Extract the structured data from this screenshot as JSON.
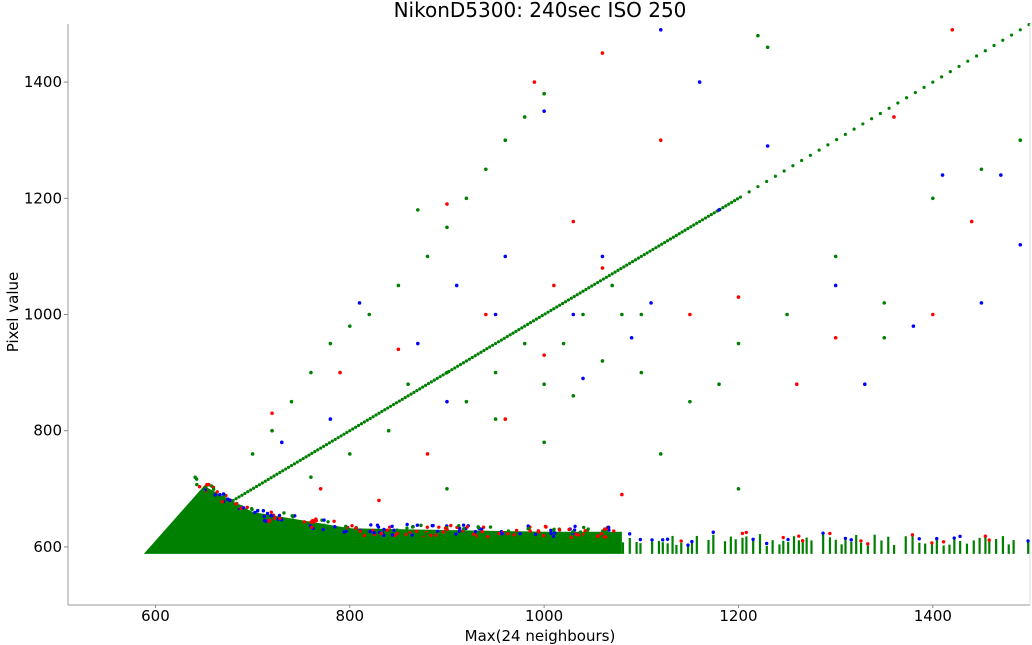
{
  "chart_data": {
    "type": "scatter",
    "title": "NikonD5300:  240sec ISO 250",
    "xlabel": "Max(24 neighbours)",
    "ylabel": "Pixel value",
    "xlim": [
      510,
      1500
    ],
    "ylim": [
      500,
      1500
    ],
    "xticks": [
      600,
      800,
      1000,
      1200,
      1400
    ],
    "yticks": [
      600,
      800,
      1000,
      1200,
      1400
    ],
    "grid": false,
    "colors": {
      "green": "#008000",
      "red": "#ff0000",
      "blue": "#0000ff"
    },
    "dense_region": [
      [
        588,
        588
      ],
      [
        650,
        705
      ],
      [
        700,
        660
      ],
      [
        800,
        632
      ],
      [
        1000,
        626
      ],
      [
        1080,
        626
      ],
      [
        1080,
        588
      ]
    ],
    "stripe_band": {
      "x": [
        1080,
        1500
      ],
      "y": [
        588,
        622
      ]
    },
    "diagonal": {
      "from": 680,
      "to": 1500,
      "series": "green"
    },
    "series": [
      {
        "color": "green",
        "points": [
          [
            700,
            760
          ],
          [
            720,
            800
          ],
          [
            740,
            850
          ],
          [
            760,
            900
          ],
          [
            780,
            950
          ],
          [
            800,
            980
          ],
          [
            820,
            1000
          ],
          [
            850,
            1050
          ],
          [
            870,
            1180
          ],
          [
            880,
            1100
          ],
          [
            900,
            1150
          ],
          [
            920,
            1200
          ],
          [
            940,
            1250
          ],
          [
            960,
            1300
          ],
          [
            980,
            1340
          ],
          [
            1000,
            1380
          ],
          [
            760,
            720
          ],
          [
            800,
            760
          ],
          [
            840,
            800
          ],
          [
            860,
            880
          ],
          [
            900,
            900
          ],
          [
            920,
            850
          ],
          [
            950,
            900
          ],
          [
            980,
            950
          ],
          [
            1000,
            880
          ],
          [
            1020,
            950
          ],
          [
            1040,
            1000
          ],
          [
            1060,
            920
          ],
          [
            1070,
            1050
          ],
          [
            1080,
            1000
          ],
          [
            900,
            700
          ],
          [
            950,
            820
          ],
          [
            1000,
            780
          ],
          [
            1030,
            860
          ],
          [
            1100,
            900
          ],
          [
            1150,
            850
          ],
          [
            1200,
            950
          ],
          [
            1250,
            1000
          ],
          [
            1300,
            1100
          ],
          [
            1350,
            960
          ],
          [
            1400,
            1200
          ],
          [
            1450,
            1250
          ],
          [
            1490,
            1300
          ],
          [
            1220,
            1480
          ],
          [
            1230,
            1460
          ],
          [
            1180,
            880
          ],
          [
            1100,
            1000
          ],
          [
            1120,
            760
          ],
          [
            1200,
            700
          ],
          [
            1350,
            1020
          ]
        ]
      },
      {
        "color": "red",
        "points": [
          [
            720,
            830
          ],
          [
            790,
            900
          ],
          [
            850,
            940
          ],
          [
            900,
            1190
          ],
          [
            940,
            1000
          ],
          [
            990,
            1400
          ],
          [
            1010,
            1050
          ],
          [
            1030,
            1160
          ],
          [
            1060,
            1080
          ],
          [
            1000,
            930
          ],
          [
            960,
            820
          ],
          [
            880,
            760
          ],
          [
            1120,
            1300
          ],
          [
            1200,
            1030
          ],
          [
            1260,
            880
          ],
          [
            1300,
            960
          ],
          [
            1400,
            1000
          ],
          [
            1420,
            1490
          ],
          [
            1150,
            1000
          ],
          [
            1060,
            1450
          ],
          [
            1360,
            1340
          ],
          [
            1440,
            1160
          ],
          [
            770,
            700
          ],
          [
            830,
            680
          ],
          [
            1080,
            690
          ]
        ]
      },
      {
        "color": "blue",
        "points": [
          [
            730,
            780
          ],
          [
            810,
            1020
          ],
          [
            870,
            950
          ],
          [
            910,
            1050
          ],
          [
            960,
            1100
          ],
          [
            1000,
            1350
          ],
          [
            1030,
            1000
          ],
          [
            1060,
            1100
          ],
          [
            1110,
            1020
          ],
          [
            1120,
            1490
          ],
          [
            1160,
            1400
          ],
          [
            1180,
            1180
          ],
          [
            1230,
            1290
          ],
          [
            1300,
            1050
          ],
          [
            1330,
            880
          ],
          [
            1380,
            980
          ],
          [
            1410,
            1240
          ],
          [
            1470,
            1240
          ],
          [
            1490,
            1120
          ],
          [
            1450,
            1020
          ],
          [
            950,
            1000
          ],
          [
            1040,
            890
          ],
          [
            900,
            850
          ],
          [
            780,
            820
          ],
          [
            1090,
            960
          ]
        ]
      }
    ]
  }
}
